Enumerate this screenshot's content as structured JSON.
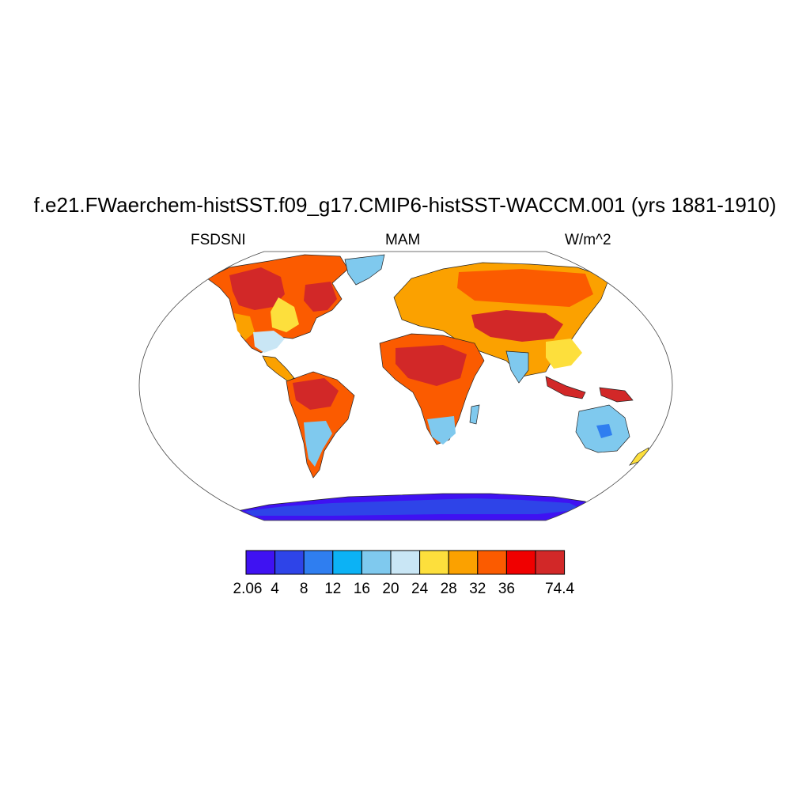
{
  "title": "f.e21.FWaerchem-histSST.f09_g17.CMIP6-histSST-WACCM.001 (yrs 1881-1910)",
  "left_label": "FSDSNI",
  "center_label": "MAM",
  "right_label": "W/m^2",
  "colorbar": {
    "labels": [
      "2.06",
      "4",
      "8",
      "12",
      "16",
      "20",
      "24",
      "28",
      "32",
      "36",
      "74.4"
    ],
    "colors": [
      "#3f12f2",
      "#2e44e8",
      "#2f7ef0",
      "#0cb2f5",
      "#7fc9ee",
      "#c9e6f5",
      "#fddf3c",
      "#fba100",
      "#fb5b00",
      "#f00000",
      "#d22828"
    ]
  }
}
